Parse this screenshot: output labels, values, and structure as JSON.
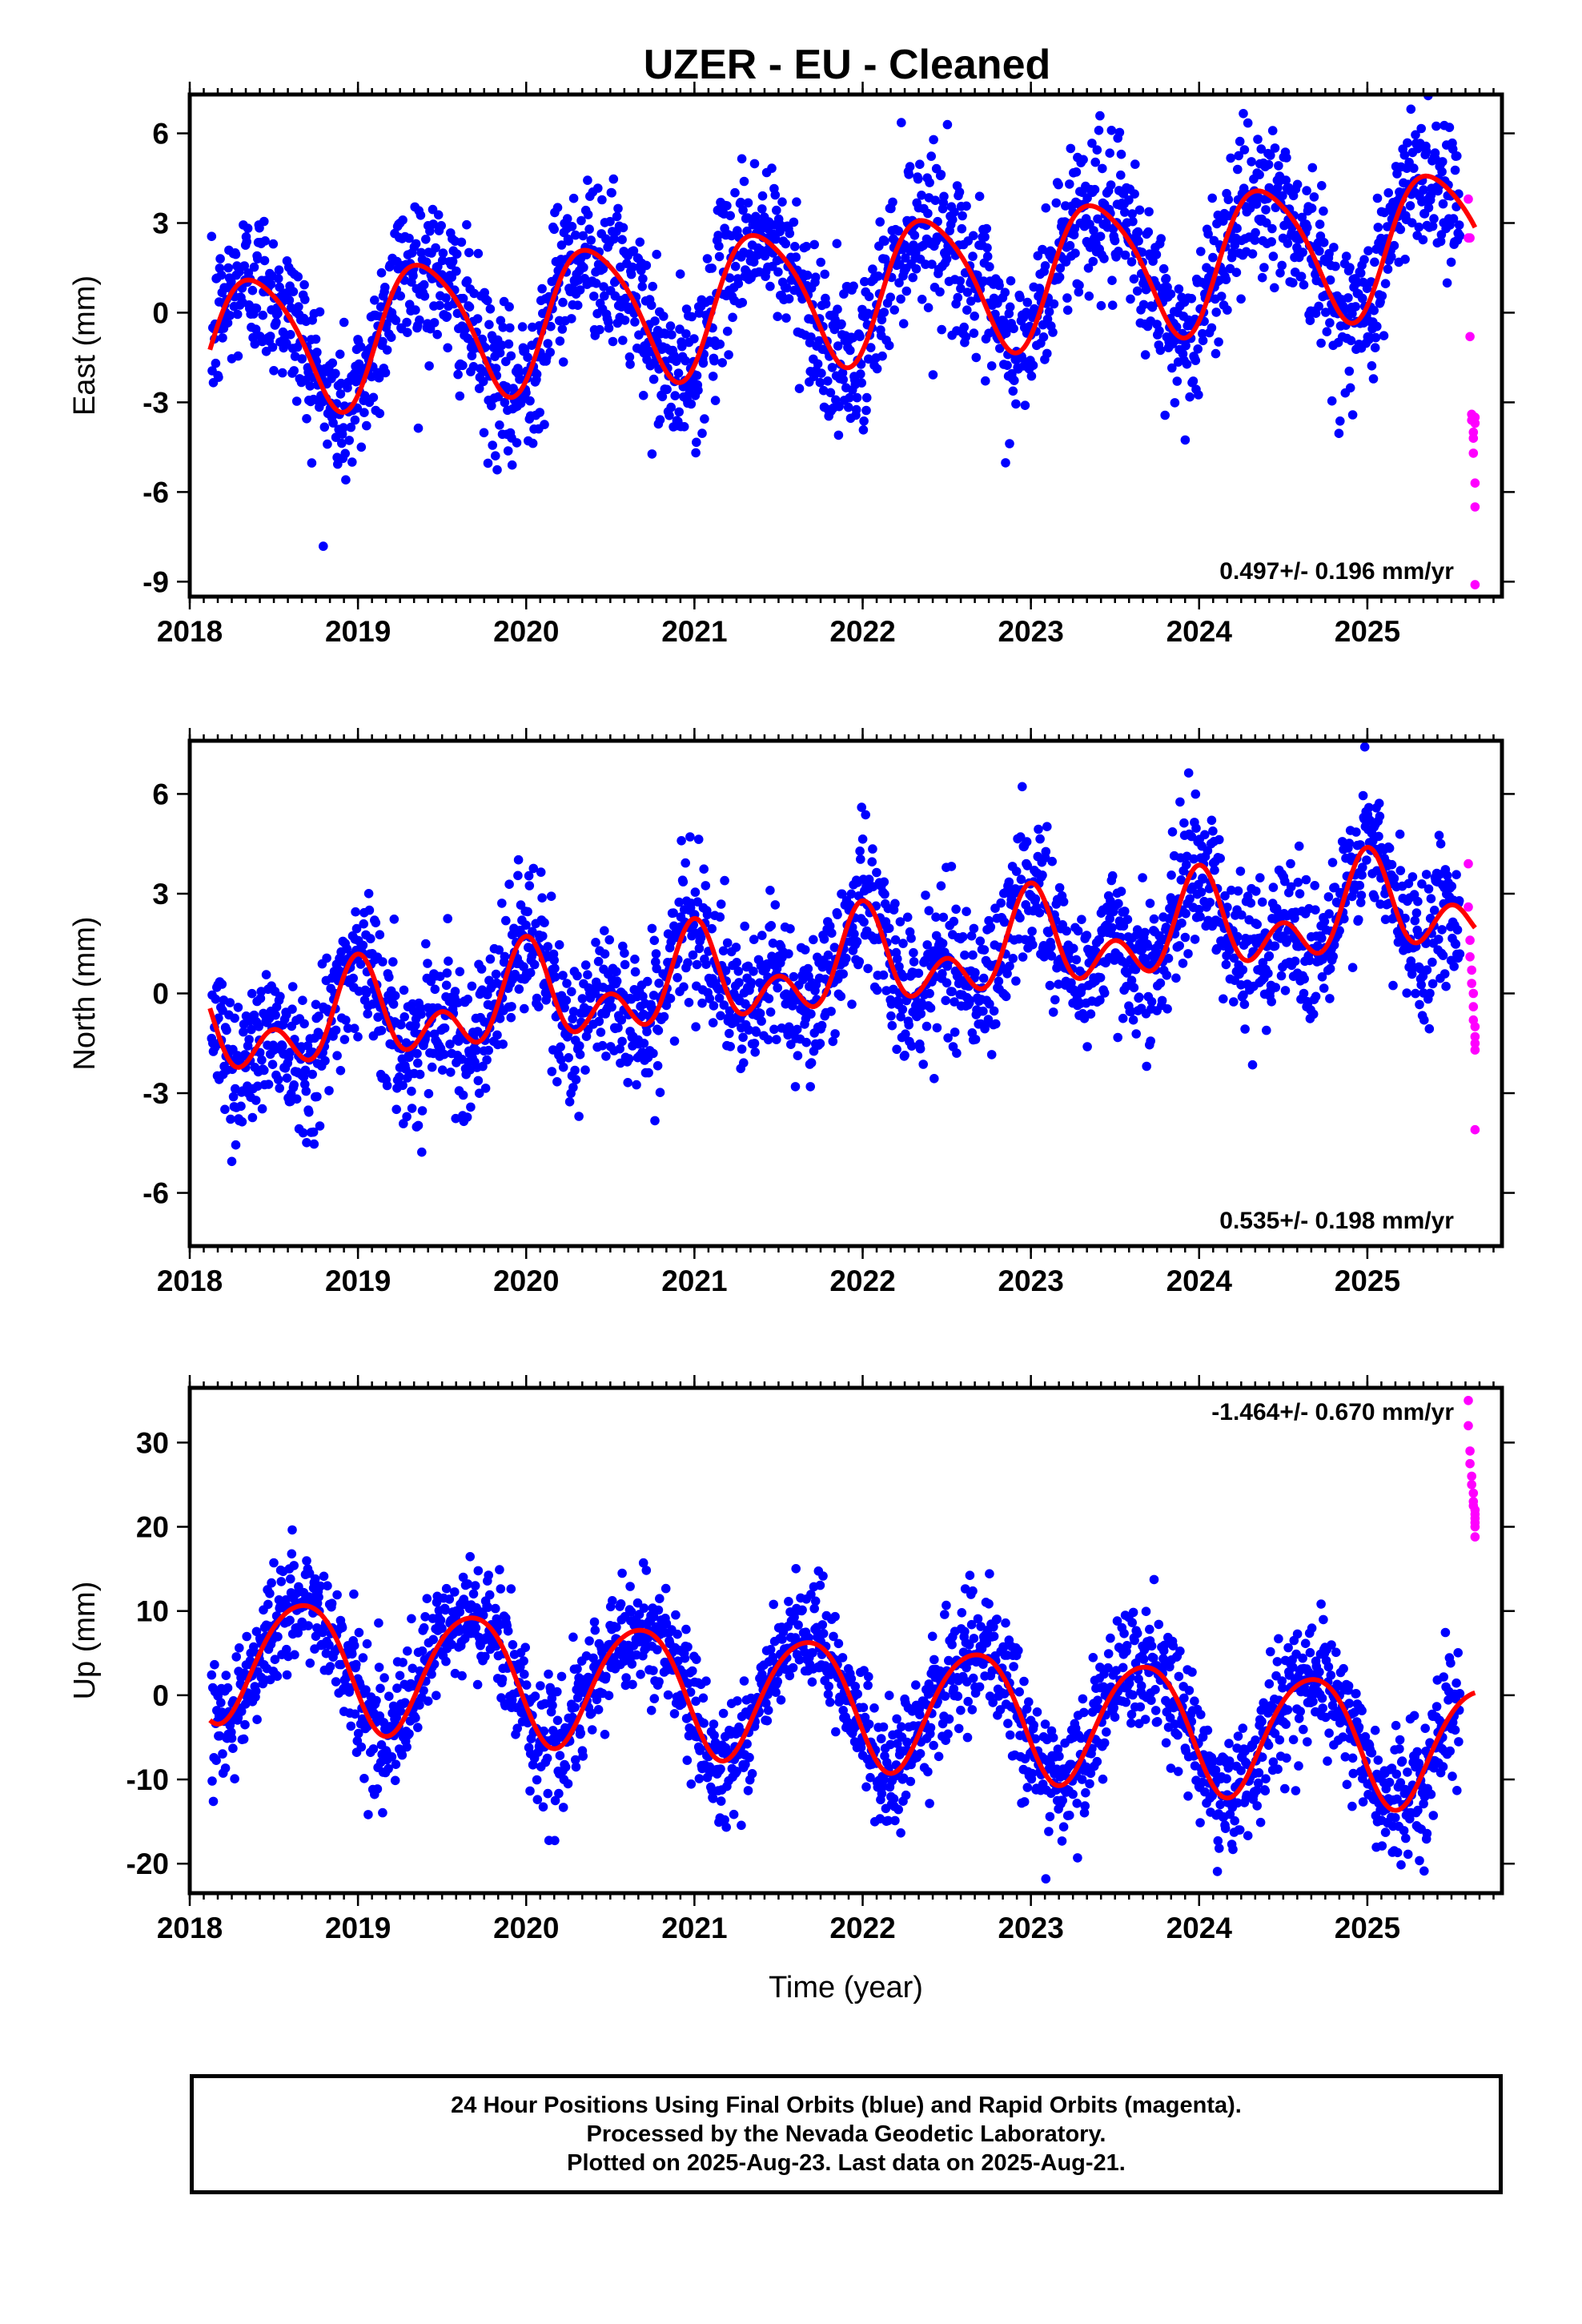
{
  "title": "UZER  - EU - Cleaned",
  "caption": [
    "24 Hour Positions Using Final Orbits (blue) and Rapid Orbits (magenta).",
    "Processed by the Nevada Geodetic Laboratory.",
    "Plotted on 2025-Aug-23. Last data on 2025-Aug-21."
  ],
  "colors": {
    "final_orbits": "#0000ff",
    "rapid_orbits": "#ff00ff",
    "model_fit": "#ff0000",
    "frame": "#000000"
  },
  "chart_data": [
    {
      "type": "scatter",
      "component": "east",
      "ylabel": "East (mm)",
      "xlabel": "",
      "xlim": [
        2018.0,
        2025.8
      ],
      "ylim": [
        -9.5,
        7.3
      ],
      "xticks": [
        2018,
        2019,
        2020,
        2021,
        2022,
        2023,
        2024,
        2025
      ],
      "yticks": [
        -9,
        -6,
        -3,
        0,
        3,
        6
      ],
      "rate_label": "0.497+/- 0.196 mm/yr",
      "rate_label_position": "bottom-right",
      "series": [
        {
          "name": "",
          "role": "final_orbits",
          "color": "#0000ff",
          "note": "daily positions 2018.12–2025.55 scattered about the model fit, spread about ±1.5 mm",
          "model": {
            "offset_mm": -1.2,
            "rate_mm_per_yr": 0.497,
            "annual_amplitude_mm": 2.3,
            "annual_peak_month_fraction": 0.39,
            "semiannual_amplitude_mm": 0.35,
            "semiannual_phase": 1.2,
            "noise_sd_mm": 1.3
          }
        },
        {
          "name": "",
          "role": "rapid_orbits",
          "color": "#ff00ff",
          "x": [
            2025.6,
            2025.6,
            2025.61,
            2025.61,
            2025.62,
            2025.62,
            2025.63,
            2025.63,
            2025.63,
            2025.64,
            2025.64,
            2025.64,
            2025.64,
            2025.64
          ],
          "y": [
            3.8,
            2.5,
            2.5,
            -0.8,
            -3.4,
            -3.6,
            -4.0,
            -4.2,
            -4.7,
            -5.7,
            -6.5,
            -3.7,
            -3.5,
            -9.1
          ]
        },
        {
          "name": "",
          "role": "model_fit",
          "color": "#ff0000",
          "x": [
            2018.12,
            2018.38,
            2018.75,
            2019.15,
            2019.42,
            2019.78,
            2020.15,
            2020.4,
            2020.8,
            2021.15,
            2021.4,
            2021.8,
            2022.15,
            2022.4,
            2022.8,
            2023.15,
            2023.4,
            2023.8,
            2024.15,
            2024.4,
            2024.8,
            2025.15,
            2025.42,
            2025.64
          ],
          "y": [
            -1.6,
            0.5,
            -4.2,
            -1.8,
            0.9,
            -3.8,
            -1.2,
            1.4,
            -3.3,
            -0.7,
            1.9,
            -2.8,
            -0.3,
            2.4,
            -2.3,
            0.2,
            2.9,
            -1.8,
            0.7,
            3.4,
            -1.2,
            1.3,
            3.9,
            0.9
          ]
        }
      ]
    },
    {
      "type": "scatter",
      "component": "north",
      "ylabel": "North (mm)",
      "xlabel": "",
      "xlim": [
        2018.0,
        2025.8
      ],
      "ylim": [
        -7.6,
        7.6
      ],
      "xticks": [
        2018,
        2019,
        2020,
        2021,
        2022,
        2023,
        2024,
        2025
      ],
      "yticks": [
        -6,
        -3,
        0,
        3,
        6
      ],
      "rate_label": "0.535+/- 0.198 mm/yr",
      "rate_label_position": "bottom-right",
      "series": [
        {
          "name": "",
          "role": "final_orbits",
          "color": "#0000ff",
          "note": "daily positions 2018.12–2025.55 scattered about the model fit, spread about ±1.2 mm",
          "model": {
            "offset_mm": -1.3,
            "rate_mm_per_yr": 0.535,
            "annual_amplitude_mm": 1.0,
            "annual_peak_month_fraction": 0.0,
            "semiannual_amplitude_mm": 0.95,
            "semiannual_phase": 0.0,
            "noise_sd_mm": 1.1
          }
        },
        {
          "name": "",
          "role": "rapid_orbits",
          "color": "#ff00ff",
          "x": [
            2025.6,
            2025.6,
            2025.61,
            2025.61,
            2025.62,
            2025.62,
            2025.63,
            2025.63,
            2025.63,
            2025.64,
            2025.64,
            2025.64,
            2025.64,
            2025.64
          ],
          "y": [
            3.9,
            2.6,
            1.6,
            1.1,
            0.7,
            0.3,
            0.0,
            -0.4,
            -0.8,
            -1.0,
            -1.3,
            -1.5,
            -1.7,
            -4.1
          ]
        },
        {
          "name": "",
          "role": "model_fit",
          "color": "#ff0000",
          "x": [
            2018.12,
            2018.25,
            2018.45,
            2018.72,
            2019.0,
            2019.22,
            2019.48,
            2019.72,
            2020.0,
            2020.22,
            2020.48,
            2020.72,
            2021.0,
            2021.22,
            2021.48,
            2021.72,
            2022.0,
            2022.22,
            2022.48,
            2022.72,
            2023.0,
            2023.22,
            2023.48,
            2023.72,
            2024.0,
            2024.22,
            2024.48,
            2024.72,
            2025.0,
            2025.22,
            2025.48,
            2025.64
          ],
          "y": [
            -1.4,
            -1.9,
            -1.1,
            -3.8,
            -0.1,
            -1.4,
            -0.6,
            -3.3,
            0.5,
            -0.9,
            -0.2,
            -2.7,
            1.0,
            -0.4,
            0.5,
            -2.2,
            1.6,
            0.2,
            1.0,
            -1.6,
            2.1,
            0.7,
            1.5,
            -1.1,
            2.7,
            1.2,
            2.0,
            -0.6,
            3.2,
            1.8,
            2.6,
            0.2
          ]
        }
      ]
    },
    {
      "type": "scatter",
      "component": "up",
      "ylabel": "Up (mm)",
      "xlabel": "Time (year)",
      "xlim": [
        2018.0,
        2025.8
      ],
      "ylim": [
        -23.5,
        36.5
      ],
      "xticks": [
        2018,
        2019,
        2020,
        2021,
        2022,
        2023,
        2024,
        2025
      ],
      "yticks": [
        -20,
        -10,
        0,
        10,
        20,
        30
      ],
      "rate_label": "-1.464+/- 0.670 mm/yr",
      "rate_label_position": "top-right",
      "series": [
        {
          "name": "",
          "role": "final_orbits",
          "color": "#0000ff",
          "note": "daily positions 2018.12–2025.55 scattered about the model fit, spread about ±4 mm",
          "model": {
            "offset_mm": 5.0,
            "rate_mm_per_yr": -1.464,
            "annual_amplitude_mm": 7.4,
            "annual_peak_month_fraction": 0.67,
            "semiannual_amplitude_mm": 0.8,
            "semiannual_phase": 0.4,
            "noise_sd_mm": 3.6
          }
        },
        {
          "name": "",
          "role": "rapid_orbits",
          "color": "#ff00ff",
          "x": [
            2025.6,
            2025.6,
            2025.61,
            2025.61,
            2025.62,
            2025.62,
            2025.63,
            2025.63,
            2025.63,
            2025.64,
            2025.64,
            2025.64,
            2025.64,
            2025.64,
            2025.64
          ],
          "y": [
            35.0,
            32.0,
            29.0,
            27.5,
            26.0,
            25.0,
            24.0,
            23.0,
            22.5,
            22.0,
            21.5,
            21.0,
            20.5,
            20.0,
            18.8
          ]
        },
        {
          "name": "",
          "role": "model_fit",
          "color": "#ff0000",
          "x": [
            2018.12,
            2018.3,
            2018.67,
            2019.0,
            2019.2,
            2019.67,
            2020.0,
            2020.2,
            2020.67,
            2021.0,
            2021.2,
            2021.67,
            2022.0,
            2022.2,
            2022.67,
            2023.0,
            2023.2,
            2023.67,
            2024.0,
            2024.2,
            2024.67,
            2025.0,
            2025.2,
            2025.64
          ],
          "y": [
            -0.3,
            1.0,
            12.8,
            0.0,
            -1.8,
            11.5,
            -1.0,
            -3.2,
            10.1,
            -2.3,
            -4.6,
            8.6,
            -3.8,
            -6.0,
            7.2,
            -5.2,
            -7.5,
            5.7,
            -6.7,
            -9.0,
            4.2,
            -8.1,
            -10.4,
            2.9
          ]
        }
      ]
    }
  ]
}
